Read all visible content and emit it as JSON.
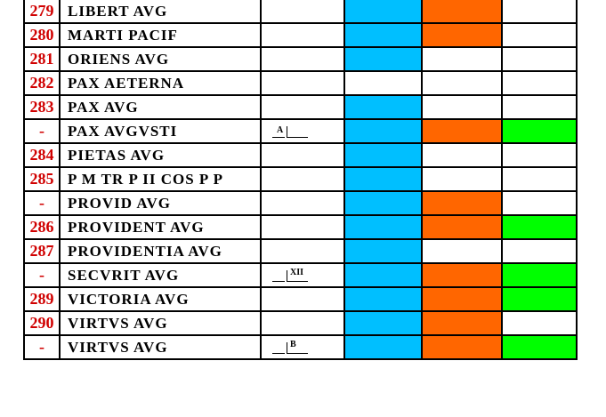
{
  "rows": [
    {
      "num": "279",
      "legend": "LIBERT AVG",
      "mark": null,
      "c1": "blue",
      "c2": "orange",
      "c3": ""
    },
    {
      "num": "280",
      "legend": "MARTI PACIF",
      "mark": null,
      "c1": "blue",
      "c2": "orange",
      "c3": ""
    },
    {
      "num": "281",
      "legend": "ORIENS AVG",
      "mark": null,
      "c1": "blue",
      "c2": "",
      "c3": ""
    },
    {
      "num": "282",
      "legend": "PAX AETERNA",
      "mark": null,
      "c1": "",
      "c2": "",
      "c3": ""
    },
    {
      "num": "283",
      "legend": "PAX AVG",
      "mark": null,
      "c1": "blue",
      "c2": "",
      "c3": ""
    },
    {
      "num": "-",
      "legend": "PAX AVGVSTI",
      "mark": {
        "left": "A",
        "right": ""
      },
      "c1": "blue",
      "c2": "orange",
      "c3": "green"
    },
    {
      "num": "284",
      "legend": "PIETAS AVG",
      "mark": null,
      "c1": "blue",
      "c2": "",
      "c3": ""
    },
    {
      "num": "285",
      "legend": "P M TR P II COS P P",
      "mark": null,
      "c1": "blue",
      "c2": "",
      "c3": ""
    },
    {
      "num": "-",
      "legend": "PROVID AVG",
      "mark": null,
      "c1": "blue",
      "c2": "orange",
      "c3": ""
    },
    {
      "num": "286",
      "legend": "PROVIDENT AVG",
      "mark": null,
      "c1": "blue",
      "c2": "orange",
      "c3": "green"
    },
    {
      "num": "287",
      "legend": "PROVIDENTIA AVG",
      "mark": null,
      "c1": "blue",
      "c2": "",
      "c3": ""
    },
    {
      "num": "-",
      "legend": "SECVRIT AVG",
      "mark": {
        "left": "",
        "right": "XII"
      },
      "c1": "blue",
      "c2": "orange",
      "c3": "green"
    },
    {
      "num": "289",
      "legend": "VICTORIA AVG",
      "mark": null,
      "c1": "blue",
      "c2": "orange",
      "c3": "green"
    },
    {
      "num": "290",
      "legend": "VIRTVS AVG",
      "mark": null,
      "c1": "blue",
      "c2": "orange",
      "c3": ""
    },
    {
      "num": "-",
      "legend": "VIRTVS AVG",
      "mark": {
        "left": "",
        "right": "B"
      },
      "c1": "blue",
      "c2": "orange",
      "c3": "green"
    }
  ],
  "colors": {
    "blue": "#00bfff",
    "orange": "#ff6600",
    "green": "#00ff00",
    "number_text": "#d00000"
  }
}
